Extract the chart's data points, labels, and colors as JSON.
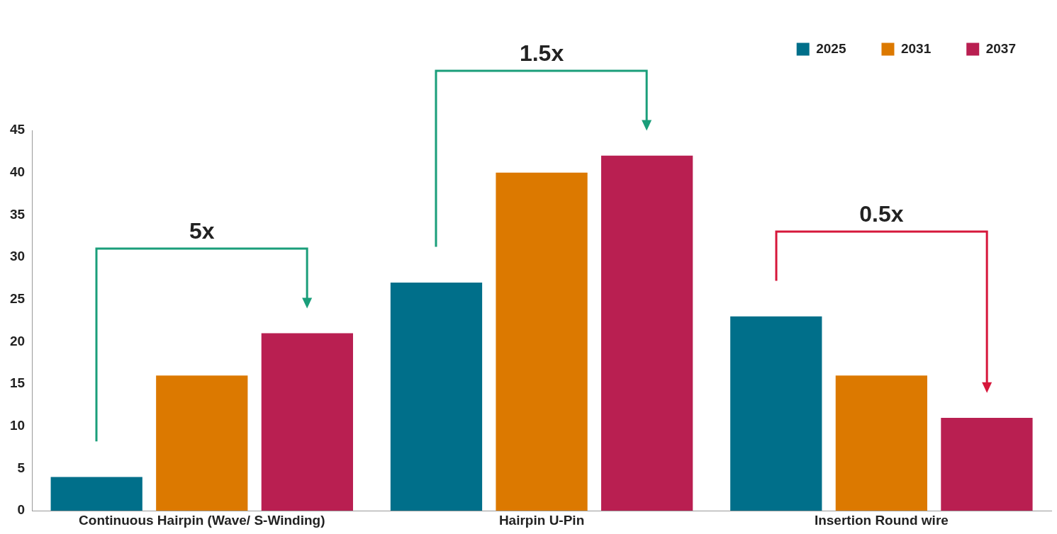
{
  "chart_data": {
    "type": "bar",
    "categories": [
      "Continuous Hairpin (Wave/ S-Winding)",
      "Hairpin U-Pin",
      "Insertion Round wire"
    ],
    "series": [
      {
        "name": "2025",
        "color": "#006f8a",
        "values": [
          4,
          27,
          23
        ]
      },
      {
        "name": "2031",
        "color": "#dc7900",
        "values": [
          16,
          40,
          16
        ]
      },
      {
        "name": "2037",
        "color": "#b91f51",
        "values": [
          21,
          42,
          11
        ]
      }
    ],
    "ylim": [
      0,
      45
    ],
    "yticks": [
      0,
      5,
      10,
      15,
      20,
      25,
      30,
      35,
      40,
      45
    ],
    "grid": false,
    "legend": "top right",
    "annotations": [
      "5x",
      "1.5x",
      "0.5x"
    ]
  }
}
